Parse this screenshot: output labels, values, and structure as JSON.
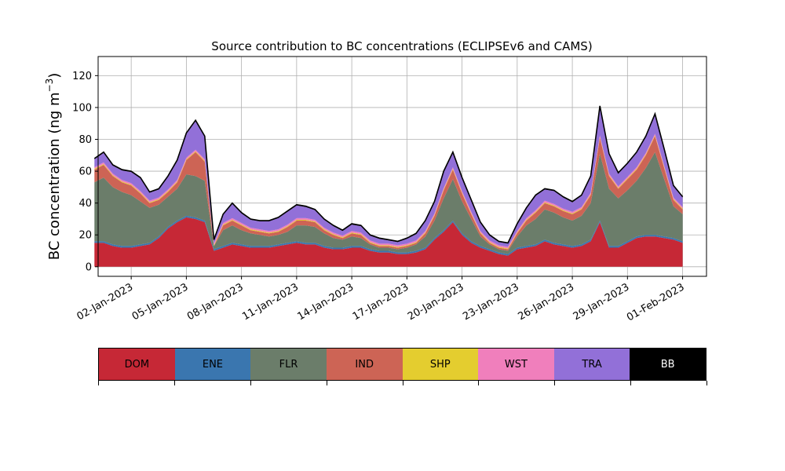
{
  "chart_data": {
    "type": "area",
    "stacked": true,
    "title": "Source contribution to BC concentrations (ECLIPSEv6 and CAMS)",
    "ylabel": "BC concentration (ng m",
    "ylabel_sup": "−3",
    "ylabel_close": ")",
    "xlabel": "",
    "ylim": [
      -6,
      132
    ],
    "xlim_days": [
      -0.8,
      32.3
    ],
    "yticks": [
      0,
      20,
      40,
      60,
      80,
      100,
      120
    ],
    "xticks": [
      {
        "day": 1,
        "label": "02-Jan-2023"
      },
      {
        "day": 4,
        "label": "05-Jan-2023"
      },
      {
        "day": 7,
        "label": "08-Jan-2023"
      },
      {
        "day": 10,
        "label": "11-Jan-2023"
      },
      {
        "day": 13,
        "label": "14-Jan-2023"
      },
      {
        "day": 16,
        "label": "17-Jan-2023"
      },
      {
        "day": 19,
        "label": "20-Jan-2023"
      },
      {
        "day": 22,
        "label": "23-Jan-2023"
      },
      {
        "day": 25,
        "label": "26-Jan-2023"
      },
      {
        "day": 28,
        "label": "29-Jan-2023"
      },
      {
        "day": 31,
        "label": "01-Feb-2023"
      }
    ],
    "grid": true,
    "x_days": [
      -1.0,
      -0.5,
      0.0,
      0.5,
      1.0,
      1.5,
      2.0,
      2.5,
      3.0,
      3.5,
      4.0,
      4.5,
      5.0,
      5.5,
      6.0,
      6.5,
      7.0,
      7.5,
      8.0,
      8.5,
      9.0,
      9.5,
      10.0,
      10.5,
      11.0,
      11.5,
      12.0,
      12.5,
      13.0,
      13.5,
      14.0,
      14.5,
      15.0,
      15.5,
      16.0,
      16.5,
      17.0,
      17.5,
      18.0,
      18.5,
      19.0,
      19.5,
      20.0,
      20.5,
      21.0,
      21.5,
      22.0,
      22.5,
      23.0,
      23.5,
      24.0,
      24.5,
      25.0,
      25.5,
      26.0,
      26.5,
      27.0,
      27.5,
      28.0,
      28.5,
      29.0,
      29.5,
      30.0,
      30.5,
      31.0
    ],
    "series": [
      {
        "name": "DOM",
        "color": "#c62836",
        "values": [
          15,
          15,
          13,
          12,
          12,
          13,
          14,
          18,
          24,
          28,
          31,
          30,
          28,
          10,
          12,
          14,
          13,
          12,
          12,
          12,
          13,
          14,
          15,
          14,
          14,
          12,
          11,
          11,
          12,
          12,
          10,
          9,
          9,
          8,
          8,
          9,
          11,
          17,
          22,
          28,
          20,
          15,
          12,
          10,
          8,
          7,
          11,
          12,
          13,
          16,
          14,
          13,
          12,
          13,
          16,
          28,
          12,
          12,
          15,
          18,
          19,
          19,
          18,
          17,
          15
        ]
      },
      {
        "name": "ENE",
        "color": "#3a76af",
        "values": [
          1,
          1,
          1,
          1,
          1,
          1,
          1,
          1,
          1,
          1,
          1,
          1,
          1,
          1,
          1,
          1,
          1,
          1,
          1,
          1,
          1,
          1,
          1,
          1,
          1,
          1,
          1,
          1,
          1,
          1,
          1,
          1,
          1,
          1,
          1,
          1,
          1,
          1,
          1,
          1,
          1,
          1,
          1,
          1,
          1,
          1,
          1,
          1,
          1,
          1,
          1,
          1,
          1,
          1,
          1,
          1,
          1,
          1,
          1,
          1,
          1,
          1,
          1,
          1,
          1
        ]
      },
      {
        "name": "FLR",
        "color": "#6b7d6a",
        "values": [
          37,
          40,
          36,
          34,
          32,
          27,
          22,
          20,
          19,
          20,
          26,
          26,
          25,
          2,
          10,
          11,
          9,
          8,
          7,
          6,
          6,
          7,
          10,
          11,
          10,
          8,
          6,
          5,
          6,
          5,
          3,
          2,
          2,
          2,
          3,
          4,
          7,
          11,
          20,
          26,
          20,
          14,
          6,
          3,
          2,
          2,
          7,
          13,
          16,
          19,
          19,
          17,
          16,
          18,
          23,
          42,
          36,
          30,
          32,
          35,
          42,
          52,
          36,
          20,
          17
        ]
      },
      {
        "name": "IND",
        "color": "#cd6455",
        "values": [
          8,
          8,
          7,
          6,
          6,
          5,
          3,
          3,
          3,
          4,
          9,
          15,
          12,
          0,
          3,
          3,
          3,
          2,
          2,
          2,
          2,
          3,
          3,
          3,
          3,
          2,
          2,
          1,
          2,
          2,
          1,
          1,
          1,
          1,
          1,
          1,
          2,
          3,
          5,
          6,
          5,
          3,
          2,
          1,
          1,
          1,
          2,
          3,
          4,
          4,
          4,
          4,
          4,
          4,
          5,
          10,
          8,
          6,
          7,
          7,
          8,
          10,
          7,
          4,
          3
        ]
      },
      {
        "name": "SHP",
        "color": "#e4cd2f",
        "values": [
          0.5,
          0.5,
          0.5,
          0.5,
          0.5,
          0.5,
          0.5,
          0.5,
          0.5,
          0.5,
          0.5,
          0.5,
          0.5,
          0.5,
          0.5,
          0.5,
          0.5,
          0.5,
          0.5,
          0.5,
          0.5,
          0.5,
          0.5,
          0.5,
          0.5,
          0.5,
          0.5,
          0.5,
          0.5,
          0.5,
          0.5,
          0.5,
          0.5,
          0.5,
          0.5,
          0.5,
          0.5,
          0.5,
          0.5,
          0.5,
          0.5,
          0.5,
          0.5,
          0.5,
          0.5,
          0.5,
          0.5,
          0.5,
          0.5,
          0.5,
          0.5,
          0.5,
          0.5,
          0.5,
          0.5,
          0.5,
          0.5,
          0.5,
          0.5,
          0.5,
          0.5,
          0.5,
          0.5,
          0.5,
          0.5
        ]
      },
      {
        "name": "WST",
        "color": "#f07fbc",
        "values": [
          1,
          1,
          1,
          1,
          1,
          1,
          1,
          1,
          1,
          1,
          1,
          1,
          1,
          1,
          1,
          1,
          1,
          1,
          1,
          1,
          1,
          1,
          1,
          1,
          1,
          1,
          1,
          1,
          1,
          1,
          1,
          1,
          1,
          1,
          1,
          1,
          1,
          1,
          1,
          1,
          1,
          1,
          1,
          1,
          1,
          1,
          1,
          1,
          1,
          1,
          1,
          1,
          1,
          1,
          1,
          1,
          1,
          1,
          1,
          1,
          1,
          1,
          1,
          1,
          1
        ]
      },
      {
        "name": "TRA",
        "color": "#9270d8",
        "values": [
          5,
          6,
          5,
          6,
          7,
          8,
          5,
          5,
          8,
          12,
          15,
          18,
          14,
          2,
          5,
          9,
          6,
          5,
          5,
          6,
          7,
          8,
          8,
          7,
          6,
          5,
          4,
          3,
          4,
          4,
          3,
          3,
          2,
          2,
          3,
          4,
          6,
          7,
          10,
          9,
          8,
          7,
          5,
          3,
          2,
          2,
          4,
          6,
          9,
          7,
          8,
          7,
          6,
          7,
          10,
          18,
          12,
          8,
          8,
          9,
          10,
          12,
          10,
          7,
          6
        ]
      },
      {
        "name": "BB",
        "color": "#000000",
        "values": [
          0.5,
          0.5,
          0.5,
          0.5,
          0.5,
          0.5,
          0.5,
          0.5,
          0.5,
          0.5,
          0.5,
          0.5,
          0.5,
          0.5,
          0.5,
          0.5,
          0.5,
          0.5,
          0.5,
          0.5,
          0.5,
          0.5,
          0.5,
          0.5,
          0.5,
          0.5,
          0.5,
          0.5,
          0.5,
          0.5,
          0.5,
          0.5,
          0.5,
          0.5,
          0.5,
          0.5,
          0.5,
          0.5,
          0.5,
          0.5,
          0.5,
          0.5,
          0.5,
          0.5,
          0.5,
          0.5,
          0.5,
          0.5,
          0.5,
          0.5,
          0.5,
          0.5,
          0.5,
          0.5,
          0.5,
          0.5,
          0.5,
          0.5,
          0.5,
          0.5,
          0.5,
          0.5,
          0.5,
          0.5,
          0.5
        ]
      }
    ],
    "legend": {
      "placement": "below",
      "entries": [
        {
          "label": "DOM",
          "color": "#c62836",
          "text_color": "#000000"
        },
        {
          "label": "ENE",
          "color": "#3a76af",
          "text_color": "#000000"
        },
        {
          "label": "FLR",
          "color": "#6b7d6a",
          "text_color": "#000000"
        },
        {
          "label": "IND",
          "color": "#cd6455",
          "text_color": "#000000"
        },
        {
          "label": "SHP",
          "color": "#e4cd2f",
          "text_color": "#000000"
        },
        {
          "label": "WST",
          "color": "#f07fbc",
          "text_color": "#000000"
        },
        {
          "label": "TRA",
          "color": "#9270d8",
          "text_color": "#000000"
        },
        {
          "label": "BB",
          "color": "#000000",
          "text_color": "#ffffff"
        }
      ]
    }
  }
}
